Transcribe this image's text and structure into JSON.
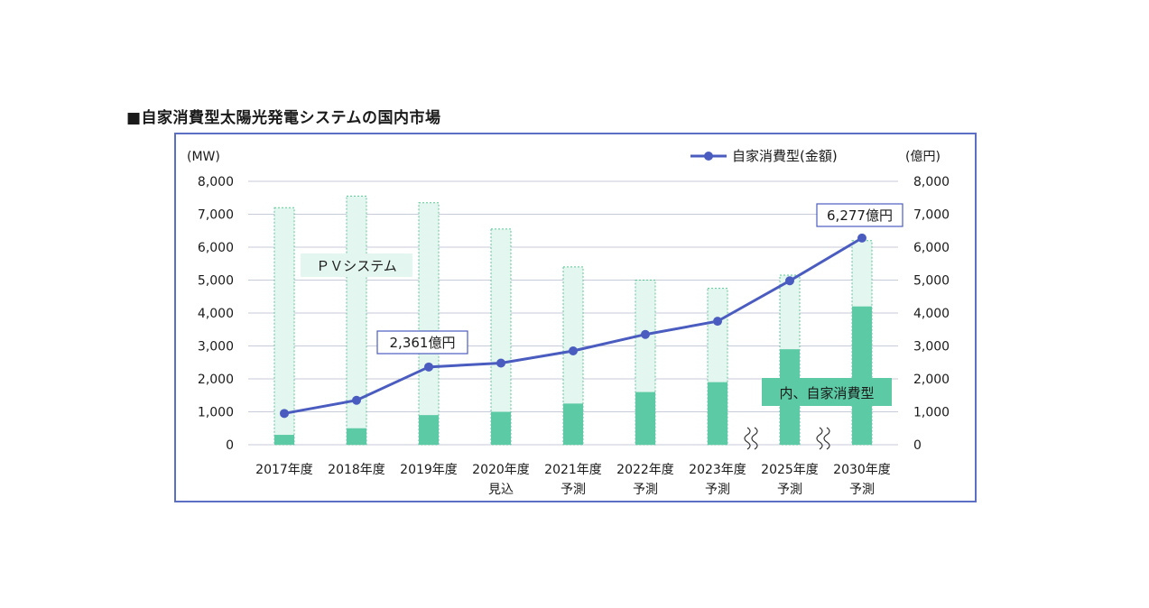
{
  "page_title": "■自家消費型太陽光発電システムの国内市場",
  "chart_data": {
    "type": "bar",
    "categories": [
      [
        "2017年度"
      ],
      [
        "2018年度"
      ],
      [
        "2019年度"
      ],
      [
        "2020年度",
        "見込"
      ],
      [
        "2021年度",
        "予測"
      ],
      [
        "2022年度",
        "予測"
      ],
      [
        "2023年度",
        "予測"
      ],
      [
        "2025年度",
        "予測"
      ],
      [
        "2030年度",
        "予測"
      ]
    ],
    "left_unit": "(MW)",
    "right_unit": "(億円)",
    "y_ticks": [
      "0",
      "1,000",
      "2,000",
      "3,000",
      "4,000",
      "5,000",
      "6,000",
      "7,000",
      "8,000"
    ],
    "ylim": [
      0,
      8000
    ],
    "pv_system_mw": [
      7200,
      7550,
      7350,
      6550,
      5400,
      5000,
      4750,
      5150,
      6200
    ],
    "self_consumption_mw": [
      300,
      500,
      900,
      1000,
      1250,
      1600,
      1900,
      2900,
      4200
    ],
    "amount_oku_yen": [
      950,
      1350,
      2361,
      2480,
      2850,
      3350,
      3750,
      4980,
      6277
    ],
    "series": [
      {
        "name": "自家消費型(金額)",
        "color": "#4a5cc0"
      }
    ],
    "annotations": {
      "pv_label": "ＰＶシステム",
      "self_label": "内、自家消費型",
      "callout_2019": "2,361億円",
      "callout_2030": "6,277億円"
    },
    "colors": {
      "bar_light": "#e3f6ef",
      "bar_border": "#5cc596",
      "bar_dark": "#5ccaa4",
      "line": "#4a5cc0",
      "grid": "#c8cbd8",
      "frame": "#5b6fc4"
    },
    "grid": true,
    "legend_position": "top-right",
    "axis_breaks_between": [
      [
        6,
        7
      ],
      [
        7,
        8
      ]
    ]
  }
}
